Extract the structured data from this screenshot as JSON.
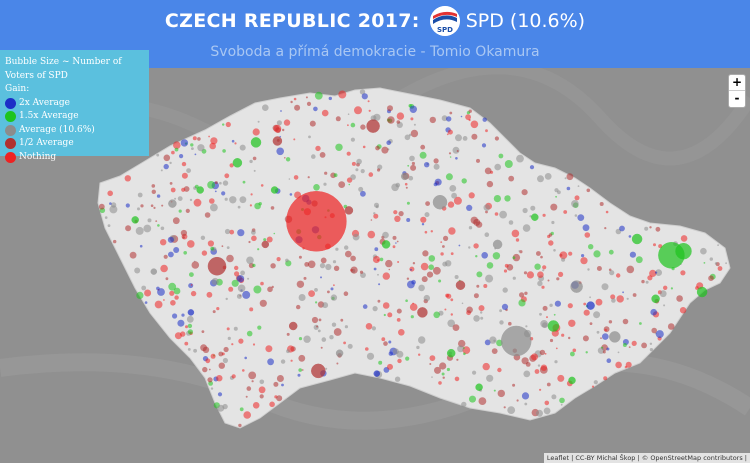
{
  "header": {
    "title": "CZECH REPUBLIC 2017:",
    "party_logo_text": "SPD",
    "party": "SPD (10.6%)",
    "subtitle": "Svoboda a přímá demokracie - Tomio Okamura"
  },
  "legend": {
    "line1": "Bubble Size ~ Number of Voters of SPD",
    "line2": "Gain:",
    "items": [
      {
        "label": "2x Average",
        "color": "#1c2fc7"
      },
      {
        "label": "1.5x Average",
        "color": "#1ec41e"
      },
      {
        "label": "Average (10.6%)",
        "color": "#8c8c8c"
      },
      {
        "label": "1/2 Average",
        "color": "#b03030"
      },
      {
        "label": "Nothing",
        "color": "#ee2222"
      }
    ]
  },
  "zoom": {
    "in": "+",
    "out": "-"
  },
  "attribution": "Leaflet | CC-BY Michal Škop | © OpenStreetMap contributors |",
  "colors": {
    "header_bg": "#4a86e8",
    "legend_bg": "#5bc0de",
    "map_bg": "#8e8e8e",
    "country_fill": "#e4e4e4"
  },
  "bubbles": [
    {
      "lng": 14.45,
      "lat": 50.07,
      "size": 60,
      "gain": "nothing"
    },
    {
      "lng": 16.6,
      "lat": 49.19,
      "size": 30,
      "gain": "average"
    },
    {
      "lng": 18.27,
      "lat": 49.82,
      "size": 26,
      "gain": "1.5x"
    },
    {
      "lng": 18.4,
      "lat": 49.85,
      "size": 16,
      "gain": "1.5x"
    },
    {
      "lng": 13.38,
      "lat": 49.74,
      "size": 18,
      "gain": "half"
    },
    {
      "lng": 14.47,
      "lat": 48.97,
      "size": 14,
      "gain": "half"
    },
    {
      "lng": 15.78,
      "lat": 50.21,
      "size": 14,
      "gain": "average"
    },
    {
      "lng": 15.06,
      "lat": 50.77,
      "size": 13,
      "gain": "half"
    },
    {
      "lng": 17.25,
      "lat": 49.59,
      "size": 12,
      "gain": "average"
    },
    {
      "lng": 17.66,
      "lat": 49.22,
      "size": 11,
      "gain": "average"
    },
    {
      "lng": 17.0,
      "lat": 49.3,
      "size": 11,
      "gain": "1.5x"
    },
    {
      "lng": 15.59,
      "lat": 49.4,
      "size": 10,
      "gain": "half"
    },
    {
      "lng": 16.0,
      "lat": 49.6,
      "size": 9,
      "gain": "half"
    },
    {
      "lng": 18.6,
      "lat": 49.55,
      "size": 10,
      "gain": "1.5x"
    },
    {
      "lng": 13.8,
      "lat": 50.65,
      "size": 10,
      "gain": "1.5x"
    },
    {
      "lng": 14.03,
      "lat": 50.66,
      "size": 9,
      "gain": "half"
    },
    {
      "lng": 13.6,
      "lat": 50.5,
      "size": 9,
      "gain": "1.5x"
    },
    {
      "lng": 14.2,
      "lat": 49.3,
      "size": 8,
      "gain": "half"
    },
    {
      "lng": 15.2,
      "lat": 49.9,
      "size": 8,
      "gain": "1.5x"
    },
    {
      "lng": 16.4,
      "lat": 49.9,
      "size": 9,
      "gain": "average"
    },
    {
      "lng": 17.9,
      "lat": 49.94,
      "size": 10,
      "gain": "1.5x"
    },
    {
      "lng": 17.4,
      "lat": 49.45,
      "size": 8,
      "gain": "2x"
    },
    {
      "lng": 13.2,
      "lat": 50.3,
      "size": 7,
      "gain": "1.5x"
    },
    {
      "lng": 12.9,
      "lat": 50.2,
      "size": 8,
      "gain": "average"
    },
    {
      "lng": 12.5,
      "lat": 50.08,
      "size": 7,
      "gain": "1.5x"
    },
    {
      "lng": 15.4,
      "lat": 50.4,
      "size": 7,
      "gain": "average"
    },
    {
      "lng": 14.8,
      "lat": 50.15,
      "size": 8,
      "gain": "half"
    },
    {
      "lng": 13.9,
      "lat": 49.9,
      "size": 7,
      "gain": "half"
    },
    {
      "lng": 15.9,
      "lat": 49.1,
      "size": 8,
      "gain": "1.5x"
    },
    {
      "lng": 16.2,
      "lat": 48.85,
      "size": 7,
      "gain": "1.5x"
    },
    {
      "lng": 17.2,
      "lat": 48.9,
      "size": 7,
      "gain": "1.5x"
    },
    {
      "lng": 14.7,
      "lat": 49.1,
      "size": 7,
      "gain": "average"
    },
    {
      "lng": 16.8,
      "lat": 50.1,
      "size": 7,
      "gain": "1.5x"
    },
    {
      "lng": 18.1,
      "lat": 49.5,
      "size": 8,
      "gain": "1.5x"
    },
    {
      "lng": 14.0,
      "lat": 50.3,
      "size": 7,
      "gain": "1.5x"
    },
    {
      "lng": 13.1,
      "lat": 49.4,
      "size": 6,
      "gain": "2x"
    },
    {
      "lng": 15.1,
      "lat": 48.95,
      "size": 6,
      "gain": "2x"
    },
    {
      "lng": 12.7,
      "lat": 49.7,
      "size": 6,
      "gain": "average"
    }
  ]
}
